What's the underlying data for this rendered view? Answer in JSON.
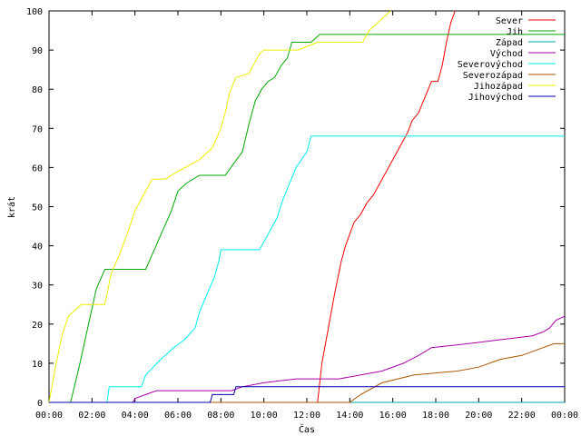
{
  "chart_data": {
    "type": "line",
    "title": "",
    "xlabel": "Čas",
    "ylabel": "krát",
    "xlim": [
      0,
      24
    ],
    "ylim": [
      0,
      100
    ],
    "x_ticks": [
      "00:00",
      "02:00",
      "04:00",
      "06:00",
      "08:00",
      "10:00",
      "12:00",
      "14:00",
      "16:00",
      "18:00",
      "20:00",
      "22:00",
      "00:00"
    ],
    "y_ticks": [
      0,
      10,
      20,
      30,
      40,
      50,
      60,
      70,
      80,
      90,
      100
    ],
    "grid": false,
    "legend_position": "top-right",
    "series": [
      {
        "name": "Sever",
        "color": "#ff0000",
        "points": [
          [
            0,
            0
          ],
          [
            12.5,
            0
          ],
          [
            12.7,
            10
          ],
          [
            13.0,
            19
          ],
          [
            13.3,
            28
          ],
          [
            13.6,
            36
          ],
          [
            13.8,
            40
          ],
          [
            14.0,
            43
          ],
          [
            14.2,
            46
          ],
          [
            14.5,
            48
          ],
          [
            14.8,
            51
          ],
          [
            15.1,
            53
          ],
          [
            15.4,
            56
          ],
          [
            15.7,
            59
          ],
          [
            16.0,
            62
          ],
          [
            16.4,
            66
          ],
          [
            16.7,
            69
          ],
          [
            16.9,
            72
          ],
          [
            17.2,
            74
          ],
          [
            17.5,
            78
          ],
          [
            17.8,
            82
          ],
          [
            18.1,
            82
          ],
          [
            18.3,
            86
          ],
          [
            18.5,
            92
          ],
          [
            18.7,
            97
          ],
          [
            18.9,
            100
          ]
        ]
      },
      {
        "name": "Jih",
        "color": "#00aa00",
        "points": [
          [
            0,
            0
          ],
          [
            1.0,
            0
          ],
          [
            1.4,
            9
          ],
          [
            1.8,
            19
          ],
          [
            2.2,
            29
          ],
          [
            2.6,
            34
          ],
          [
            4.5,
            34
          ],
          [
            4.9,
            39
          ],
          [
            5.3,
            44
          ],
          [
            5.7,
            49
          ],
          [
            6.0,
            54
          ],
          [
            6.4,
            56
          ],
          [
            7.0,
            58
          ],
          [
            8.2,
            58
          ],
          [
            8.6,
            61
          ],
          [
            9.0,
            64
          ],
          [
            9.3,
            71
          ],
          [
            9.6,
            77
          ],
          [
            9.9,
            80
          ],
          [
            10.2,
            82
          ],
          [
            10.5,
            83
          ],
          [
            10.8,
            86
          ],
          [
            11.1,
            88
          ],
          [
            11.3,
            92
          ],
          [
            11.6,
            92
          ],
          [
            12.2,
            92
          ],
          [
            12.6,
            94
          ],
          [
            24,
            94
          ]
        ]
      },
      {
        "name": "Západ",
        "color": "#00aaaa",
        "points": [
          [
            0,
            0
          ],
          [
            24,
            0
          ]
        ]
      },
      {
        "name": "Východ",
        "color": "#aa00aa",
        "points": [
          [
            0,
            0
          ],
          [
            3.9,
            0
          ],
          [
            4.0,
            1
          ],
          [
            4.5,
            2
          ],
          [
            5.0,
            3
          ],
          [
            8.5,
            3
          ],
          [
            9.0,
            4
          ],
          [
            10.0,
            5
          ],
          [
            11.5,
            6
          ],
          [
            13.5,
            6
          ],
          [
            15.5,
            8
          ],
          [
            16.5,
            10
          ],
          [
            17.2,
            12
          ],
          [
            17.8,
            14
          ],
          [
            19.5,
            15
          ],
          [
            21.0,
            16
          ],
          [
            22.5,
            17
          ],
          [
            23.0,
            18
          ],
          [
            23.3,
            19
          ],
          [
            23.6,
            21
          ],
          [
            24,
            22
          ]
        ]
      },
      {
        "name": "Severovýchod",
        "color": "#00eeee",
        "points": [
          [
            0,
            0
          ],
          [
            2.7,
            0
          ],
          [
            2.8,
            4
          ],
          [
            4.3,
            4
          ],
          [
            4.5,
            7
          ],
          [
            5.2,
            11
          ],
          [
            5.8,
            14
          ],
          [
            6.3,
            16
          ],
          [
            6.8,
            19
          ],
          [
            7.0,
            23
          ],
          [
            7.3,
            27
          ],
          [
            7.7,
            32
          ],
          [
            7.9,
            36
          ],
          [
            8.0,
            39
          ],
          [
            9.8,
            39
          ],
          [
            10.1,
            42
          ],
          [
            10.6,
            47
          ],
          [
            10.9,
            52
          ],
          [
            11.2,
            56
          ],
          [
            11.5,
            60
          ],
          [
            12.0,
            64
          ],
          [
            12.2,
            68
          ],
          [
            24,
            68
          ]
        ]
      },
      {
        "name": "Severozápad",
        "color": "#aa5500",
        "points": [
          [
            0,
            0
          ],
          [
            14.0,
            0
          ],
          [
            14.5,
            2
          ],
          [
            15.5,
            5
          ],
          [
            17.0,
            7
          ],
          [
            19.0,
            8
          ],
          [
            20.0,
            9
          ],
          [
            21.0,
            11
          ],
          [
            22.0,
            12
          ],
          [
            23.0,
            14
          ],
          [
            23.5,
            15
          ],
          [
            24,
            15
          ]
        ]
      },
      {
        "name": "Jihozápad",
        "color": "#eeee00",
        "points": [
          [
            0,
            0
          ],
          [
            0.3,
            9
          ],
          [
            0.6,
            17
          ],
          [
            0.9,
            22
          ],
          [
            1.5,
            25
          ],
          [
            2.6,
            25
          ],
          [
            2.9,
            33
          ],
          [
            3.3,
            38
          ],
          [
            3.7,
            44
          ],
          [
            4.0,
            49
          ],
          [
            4.4,
            53
          ],
          [
            4.8,
            57
          ],
          [
            5.4,
            57
          ],
          [
            6.0,
            59
          ],
          [
            7.0,
            62
          ],
          [
            7.6,
            65
          ],
          [
            8.0,
            70
          ],
          [
            8.2,
            74
          ],
          [
            8.4,
            79
          ],
          [
            8.7,
            83
          ],
          [
            9.3,
            84
          ],
          [
            9.8,
            89
          ],
          [
            10.0,
            90
          ],
          [
            11.6,
            90
          ],
          [
            12.5,
            92
          ],
          [
            14.6,
            92
          ],
          [
            14.9,
            95
          ],
          [
            15.3,
            97
          ],
          [
            15.7,
            99
          ],
          [
            15.9,
            100
          ]
        ]
      },
      {
        "name": "Jihovýchod",
        "color": "#0000aa",
        "points": [
          [
            0,
            0
          ],
          [
            7.5,
            0
          ],
          [
            7.6,
            2
          ],
          [
            8.6,
            2
          ],
          [
            8.7,
            4
          ],
          [
            24,
            4
          ]
        ]
      }
    ]
  }
}
